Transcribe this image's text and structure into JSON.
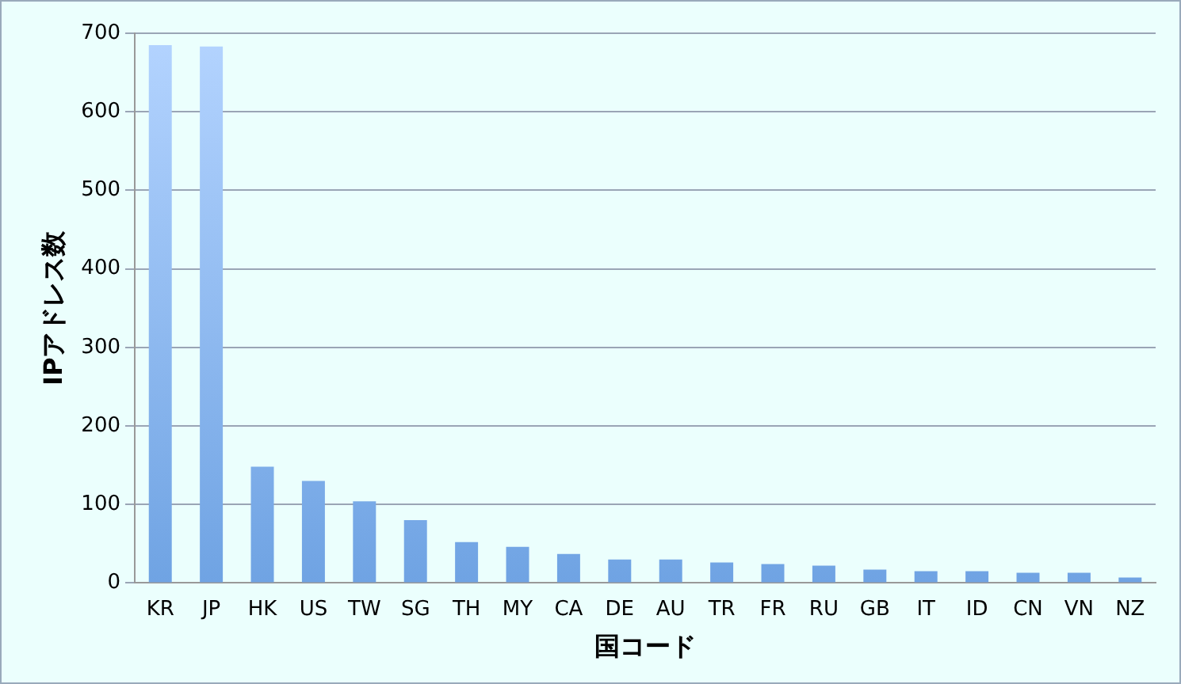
{
  "chart_data": {
    "type": "bar",
    "xlabel": "国コード",
    "ylabel": "IPアドレス数",
    "categories": [
      "KR",
      "JP",
      "HK",
      "US",
      "TW",
      "SG",
      "TH",
      "MY",
      "CA",
      "DE",
      "AU",
      "TR",
      "FR",
      "RU",
      "GB",
      "IT",
      "ID",
      "CN",
      "VN",
      "NZ"
    ],
    "values": [
      685,
      683,
      148,
      130,
      104,
      80,
      52,
      46,
      37,
      30,
      30,
      26,
      24,
      22,
      17,
      15,
      15,
      13,
      13,
      7
    ],
    "color": "#6fa3e3",
    "ylim": [
      0,
      700
    ],
    "yticks": [
      0,
      100,
      200,
      300,
      400,
      500,
      600,
      700
    ],
    "grid": "y",
    "legend": false
  }
}
